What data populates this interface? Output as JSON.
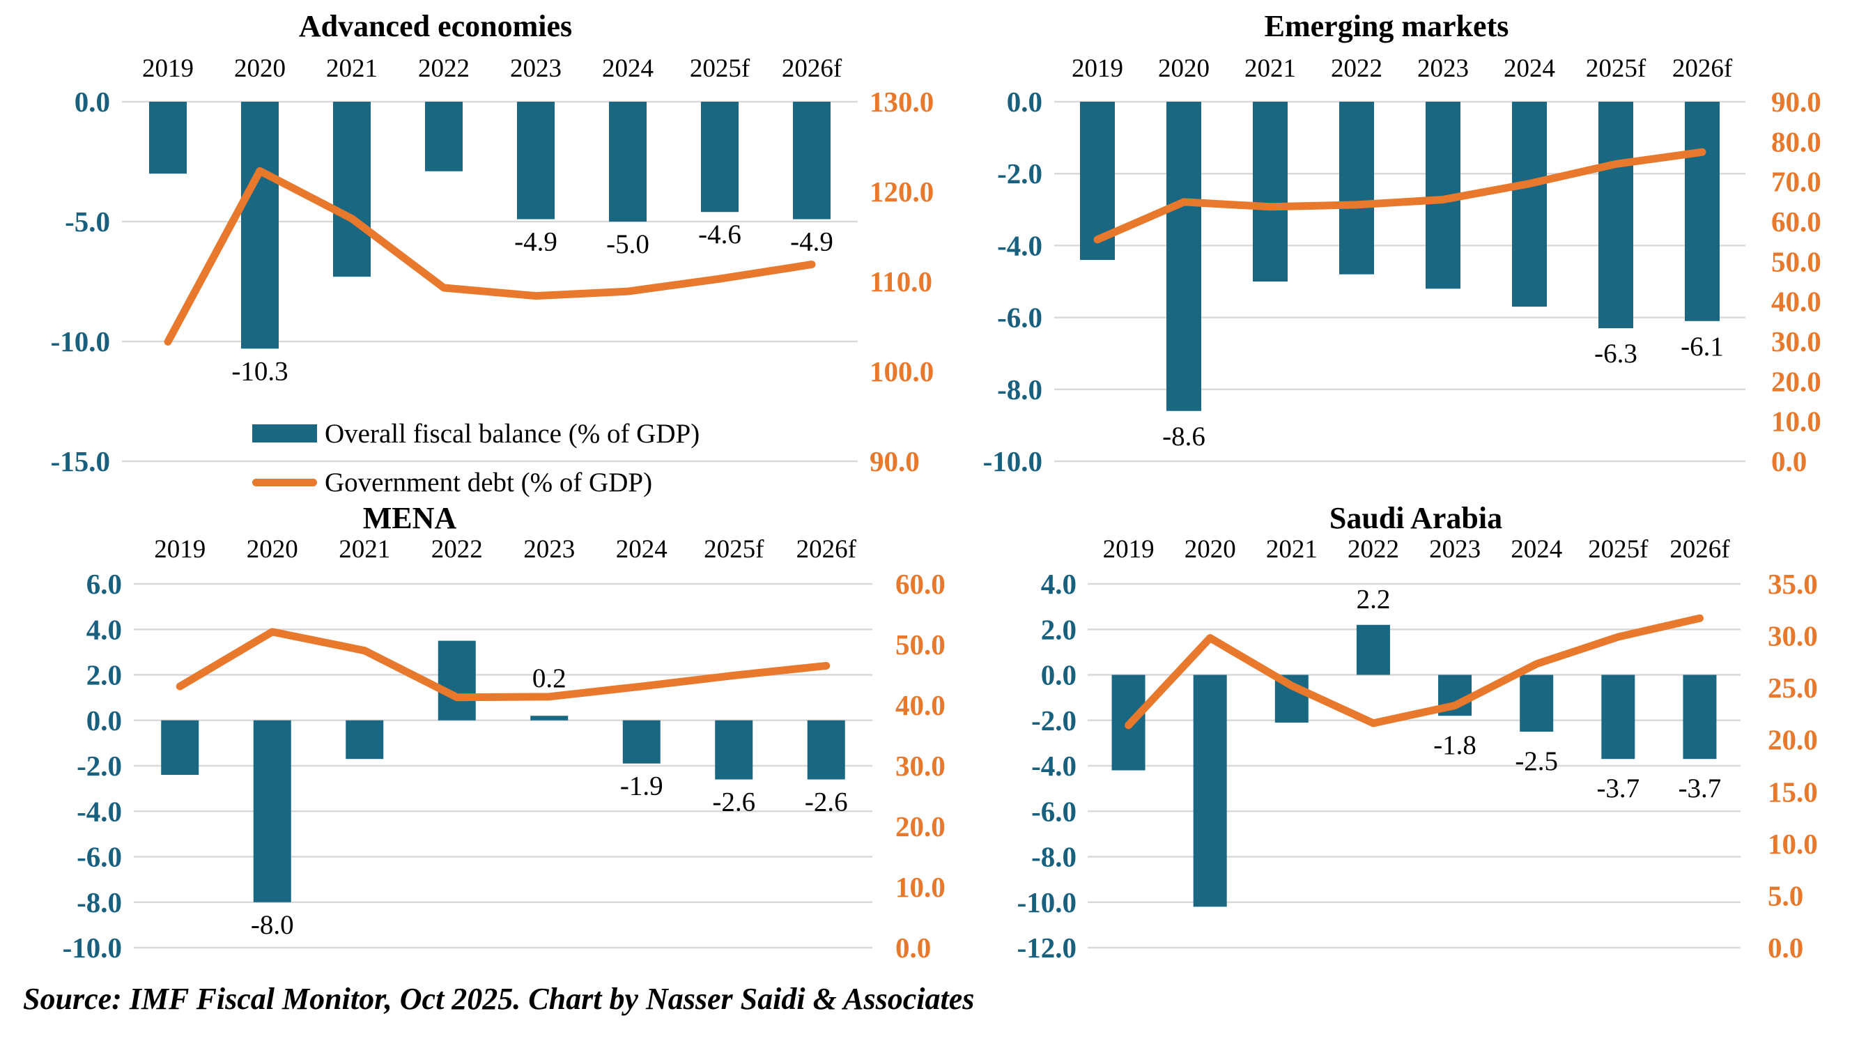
{
  "source_note": "Source: IMF Fiscal Monitor, Oct 2025. Chart by Nasser Saidi & Associates",
  "legend": {
    "bar_label": "Overall fiscal balance (% of GDP)",
    "line_label": "Government debt (% of GDP)"
  },
  "colors": {
    "bar": "#1A6782",
    "line": "#E7782C",
    "left_axis_text": "#19607E",
    "right_axis_text": "#E7782C",
    "grid": "#D9D9D9",
    "data_label": "#000000"
  },
  "chart_data": [
    {
      "type": "bar+line",
      "title": "Advanced economies",
      "categories": [
        "2019",
        "2020",
        "2021",
        "2022",
        "2023",
        "2024",
        "2025f",
        "2026f"
      ],
      "series": [
        {
          "name": "Overall fiscal balance (% of GDP)",
          "type": "bar",
          "axis": "left",
          "values": [
            -3.0,
            -10.3,
            -7.3,
            -2.9,
            -4.9,
            -5.0,
            -4.6,
            -4.9
          ]
        },
        {
          "name": "Government debt (% of GDP)",
          "type": "line",
          "axis": "right",
          "values": [
            103.3,
            122.3,
            117.0,
            109.3,
            108.4,
            108.9,
            110.3,
            111.9
          ]
        }
      ],
      "left_axis": {
        "min": -15,
        "max": 0,
        "tick_labels": [
          "0.0",
          "-5.0",
          "-10.0",
          "-15.0"
        ]
      },
      "right_axis": {
        "min": 90,
        "max": 130,
        "tick_labels": [
          "130.0",
          "120.0",
          "110.0",
          "100.0",
          "90.0"
        ]
      },
      "bar_value_labels": [
        {
          "category": "2020",
          "text": "-10.3"
        },
        {
          "category": "2023",
          "text": "-4.9"
        },
        {
          "category": "2024",
          "text": "-5.0"
        },
        {
          "category": "2025f",
          "text": "-4.6"
        },
        {
          "category": "2026f",
          "text": "-4.9"
        }
      ],
      "has_legend": true
    },
    {
      "type": "bar+line",
      "title": "Emerging markets",
      "categories": [
        "2019",
        "2020",
        "2021",
        "2022",
        "2023",
        "2024",
        "2025f",
        "2026f"
      ],
      "series": [
        {
          "name": "Overall fiscal balance (% of GDP)",
          "type": "bar",
          "axis": "left",
          "values": [
            -4.4,
            -8.6,
            -5.0,
            -4.8,
            -5.2,
            -5.7,
            -6.3,
            -6.1
          ]
        },
        {
          "name": "Government debt (% of GDP)",
          "type": "line",
          "axis": "right",
          "values": [
            55.5,
            64.9,
            63.7,
            64.2,
            65.5,
            69.5,
            74.4,
            77.4
          ]
        }
      ],
      "left_axis": {
        "min": -10,
        "max": 0,
        "tick_labels": [
          "0.0",
          "-2.0",
          "-4.0",
          "-6.0",
          "-8.0",
          "-10.0"
        ]
      },
      "right_axis": {
        "min": 0,
        "max": 90,
        "tick_labels": [
          "90.0",
          "80.0",
          "70.0",
          "60.0",
          "50.0",
          "40.0",
          "30.0",
          "20.0",
          "10.0",
          "0.0"
        ]
      },
      "bar_value_labels": [
        {
          "category": "2020",
          "text": "-8.6"
        },
        {
          "category": "2025f",
          "text": "-6.3"
        },
        {
          "category": "2026f",
          "text": "-6.1"
        }
      ],
      "has_legend": false
    },
    {
      "type": "bar+line",
      "title": "MENA",
      "categories": [
        "2019",
        "2020",
        "2021",
        "2022",
        "2023",
        "2024",
        "2025f",
        "2026f"
      ],
      "series": [
        {
          "name": "Overall fiscal balance (% of GDP)",
          "type": "bar",
          "axis": "left",
          "values": [
            -2.4,
            -8.0,
            -1.7,
            3.5,
            0.2,
            -1.9,
            -2.6,
            -2.6
          ]
        },
        {
          "name": "Government debt (% of GDP)",
          "type": "line",
          "axis": "right",
          "values": [
            43.1,
            52.1,
            49.0,
            41.3,
            41.4,
            43.1,
            44.9,
            46.5
          ]
        }
      ],
      "left_axis": {
        "min": -10,
        "max": 6,
        "tick_labels": [
          "6.0",
          "4.0",
          "2.0",
          "0.0",
          "-2.0",
          "-4.0",
          "-6.0",
          "-8.0",
          "-10.0"
        ]
      },
      "right_axis": {
        "min": 0,
        "max": 60,
        "tick_labels": [
          "60.0",
          "50.0",
          "40.0",
          "30.0",
          "20.0",
          "10.0",
          "0.0"
        ]
      },
      "bar_value_labels": [
        {
          "category": "2020",
          "text": "-8.0"
        },
        {
          "category": "2023",
          "text": "0.2"
        },
        {
          "category": "2024",
          "text": "-1.9"
        },
        {
          "category": "2025f",
          "text": "-2.6"
        },
        {
          "category": "2026f",
          "text": "-2.6"
        }
      ],
      "has_legend": false
    },
    {
      "type": "bar+line",
      "title": "Saudi Arabia",
      "categories": [
        "2019",
        "2020",
        "2021",
        "2022",
        "2023",
        "2024",
        "2025f",
        "2026f"
      ],
      "series": [
        {
          "name": "Overall fiscal balance (% of GDP)",
          "type": "bar",
          "axis": "left",
          "values": [
            -4.2,
            -10.2,
            -2.1,
            2.2,
            -1.8,
            -2.5,
            -3.7,
            -3.7
          ]
        },
        {
          "name": "Government debt (% of GDP)",
          "type": "line",
          "axis": "right",
          "values": [
            21.4,
            29.8,
            25.2,
            21.6,
            23.3,
            27.3,
            29.9,
            31.7
          ]
        }
      ],
      "left_axis": {
        "min": -12,
        "max": 4,
        "tick_labels": [
          "4.0",
          "2.0",
          "0.0",
          "-2.0",
          "-4.0",
          "-6.0",
          "-8.0",
          "-10.0",
          "-12.0"
        ]
      },
      "right_axis": {
        "min": 0,
        "max": 35,
        "tick_labels": [
          "35.0",
          "30.0",
          "25.0",
          "20.0",
          "15.0",
          "10.0",
          "5.0",
          "0.0"
        ]
      },
      "bar_value_labels": [
        {
          "category": "2022",
          "text": "2.2"
        },
        {
          "category": "2023",
          "text": "-1.8"
        },
        {
          "category": "2024",
          "text": "-2.5"
        },
        {
          "category": "2025f",
          "text": "-3.7"
        },
        {
          "category": "2026f",
          "text": "-3.7"
        }
      ],
      "has_legend": false
    }
  ]
}
